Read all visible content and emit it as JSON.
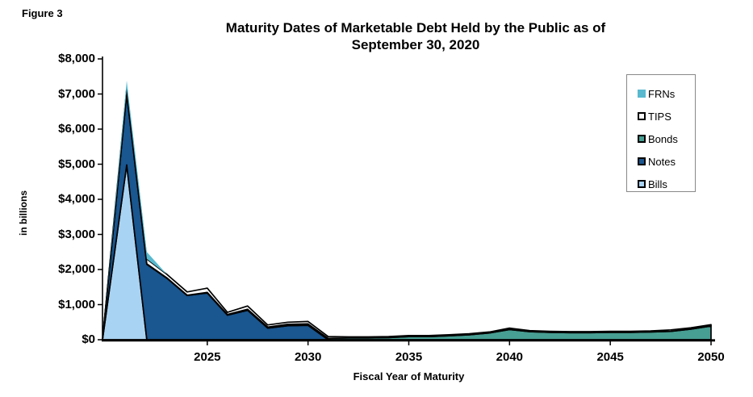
{
  "figure_label": "Figure 3",
  "title": {
    "line1": "Maturity Dates of Marketable Debt Held by the Public as of",
    "line2": "September 30, 2020"
  },
  "axes": {
    "y_title": "in billions",
    "x_title": "Fiscal Year of Maturity",
    "y_ticks": {
      "labels": [
        "$0",
        "$1,000",
        "$2,000",
        "$3,000",
        "$4,000",
        "$5,000",
        "$6,000",
        "$7,000",
        "$8,000"
      ],
      "values": [
        0,
        1000,
        2000,
        3000,
        4000,
        5000,
        6000,
        7000,
        8000
      ]
    },
    "x_ticks": {
      "labels": [
        "2025",
        "2030",
        "2035",
        "2040",
        "2045",
        "2050"
      ],
      "values": [
        2025,
        2030,
        2035,
        2040,
        2045,
        2050
      ]
    }
  },
  "legend": {
    "position": "top-right",
    "items": [
      {
        "label": "FRNs",
        "color": "#58B9CF",
        "border": false
      },
      {
        "label": "TIPS",
        "color": "#FFFFFF",
        "border": true
      },
      {
        "label": "Bonds",
        "color": "#479E92",
        "border": true
      },
      {
        "label": "Notes",
        "color": "#1A568F",
        "border": true
      },
      {
        "label": "Bills",
        "color": "#A9D3F2",
        "border": true
      }
    ]
  },
  "chart_data": {
    "type": "area",
    "stacked": true,
    "title": "Maturity Dates of Marketable Debt Held by the Public as of September 30, 2020",
    "xlabel": "Fiscal Year of Maturity",
    "ylabel": "in billions",
    "units": "USD billions",
    "ylim": [
      0,
      8000
    ],
    "xlim": [
      2020,
      2050
    ],
    "grid": false,
    "legend_position": "top-right",
    "x": [
      2021,
      2022,
      2023,
      2024,
      2025,
      2026,
      2027,
      2028,
      2029,
      2030,
      2031,
      2032,
      2033,
      2034,
      2035,
      2036,
      2037,
      2038,
      2039,
      2040,
      2041,
      2042,
      2043,
      2044,
      2045,
      2046,
      2047,
      2048,
      2049,
      2050
    ],
    "series": [
      {
        "name": "Bills",
        "color": "#A9D3F2",
        "outlined": true,
        "values": [
          4980,
          0,
          0,
          0,
          0,
          0,
          0,
          0,
          0,
          0,
          0,
          0,
          0,
          0,
          0,
          0,
          0,
          0,
          0,
          0,
          0,
          0,
          0,
          0,
          0,
          0,
          0,
          0,
          0,
          0
        ]
      },
      {
        "name": "Notes",
        "color": "#1A568F",
        "outlined": true,
        "values": [
          2030,
          2150,
          1750,
          1260,
          1330,
          700,
          840,
          330,
          400,
          410,
          0,
          0,
          0,
          0,
          0,
          0,
          0,
          0,
          0,
          0,
          0,
          0,
          0,
          0,
          0,
          0,
          0,
          0,
          0,
          0
        ]
      },
      {
        "name": "Bonds",
        "color": "#479E92",
        "outlined": true,
        "values": [
          10,
          10,
          10,
          10,
          20,
          20,
          30,
          30,
          40,
          40,
          40,
          50,
          50,
          60,
          90,
          90,
          110,
          140,
          190,
          290,
          230,
          210,
          200,
          200,
          210,
          210,
          220,
          240,
          300,
          390
        ]
      },
      {
        "name": "TIPS",
        "color": "#FFFFFF",
        "outlined": true,
        "values": [
          130,
          140,
          100,
          90,
          120,
          60,
          90,
          60,
          60,
          70,
          50,
          30,
          30,
          30,
          30,
          30,
          30,
          30,
          30,
          40,
          30,
          30,
          30,
          30,
          30,
          30,
          30,
          40,
          40,
          40
        ]
      },
      {
        "name": "FRNs",
        "color": "#58B9CF",
        "outlined": false,
        "values": [
          230,
          200,
          0,
          0,
          0,
          0,
          0,
          0,
          0,
          0,
          0,
          0,
          0,
          0,
          0,
          0,
          0,
          0,
          0,
          0,
          0,
          0,
          0,
          0,
          0,
          0,
          0,
          0,
          0,
          0
        ]
      }
    ]
  },
  "colors": {
    "outline": "#000000",
    "axis": "#000000",
    "legend_border": "#888888",
    "background": "#FFFFFF"
  }
}
